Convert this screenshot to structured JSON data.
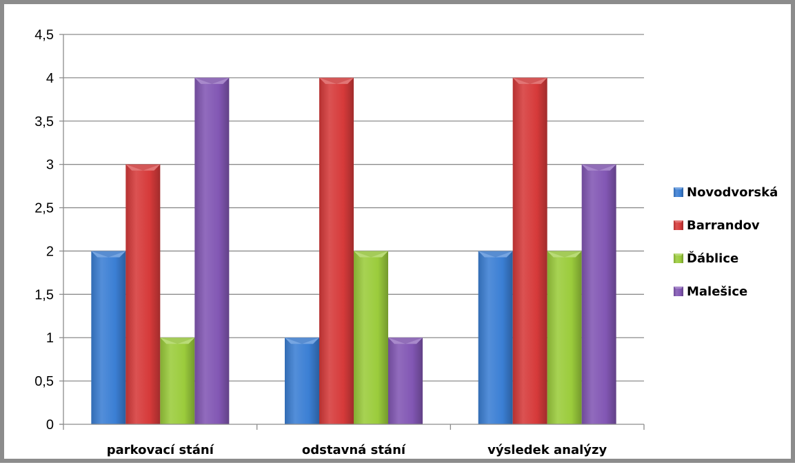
{
  "chart_data": {
    "type": "bar",
    "title": "",
    "xlabel": "",
    "ylabel": "",
    "categories": [
      "parkovací stání",
      "odstavná stání",
      "výsledek analýzy"
    ],
    "series": [
      {
        "name": "Novodvorská",
        "values": [
          2,
          1,
          2
        ],
        "color": "#3b7fd4"
      },
      {
        "name": "Barrandov",
        "values": [
          3,
          4,
          4
        ],
        "color": "#d63a3a"
      },
      {
        "name": "Ďáblice",
        "values": [
          1,
          2,
          2
        ],
        "color": "#9bcc3c"
      },
      {
        "name": "Malešice",
        "values": [
          4,
          1,
          3
        ],
        "color": "#8257b4"
      }
    ],
    "ylim": [
      0,
      4.5
    ],
    "yticks": [
      "0",
      "0,5",
      "1",
      "1,5",
      "2",
      "2,5",
      "3",
      "3,5",
      "4",
      "4,5"
    ],
    "grid": true,
    "legend": "right"
  }
}
